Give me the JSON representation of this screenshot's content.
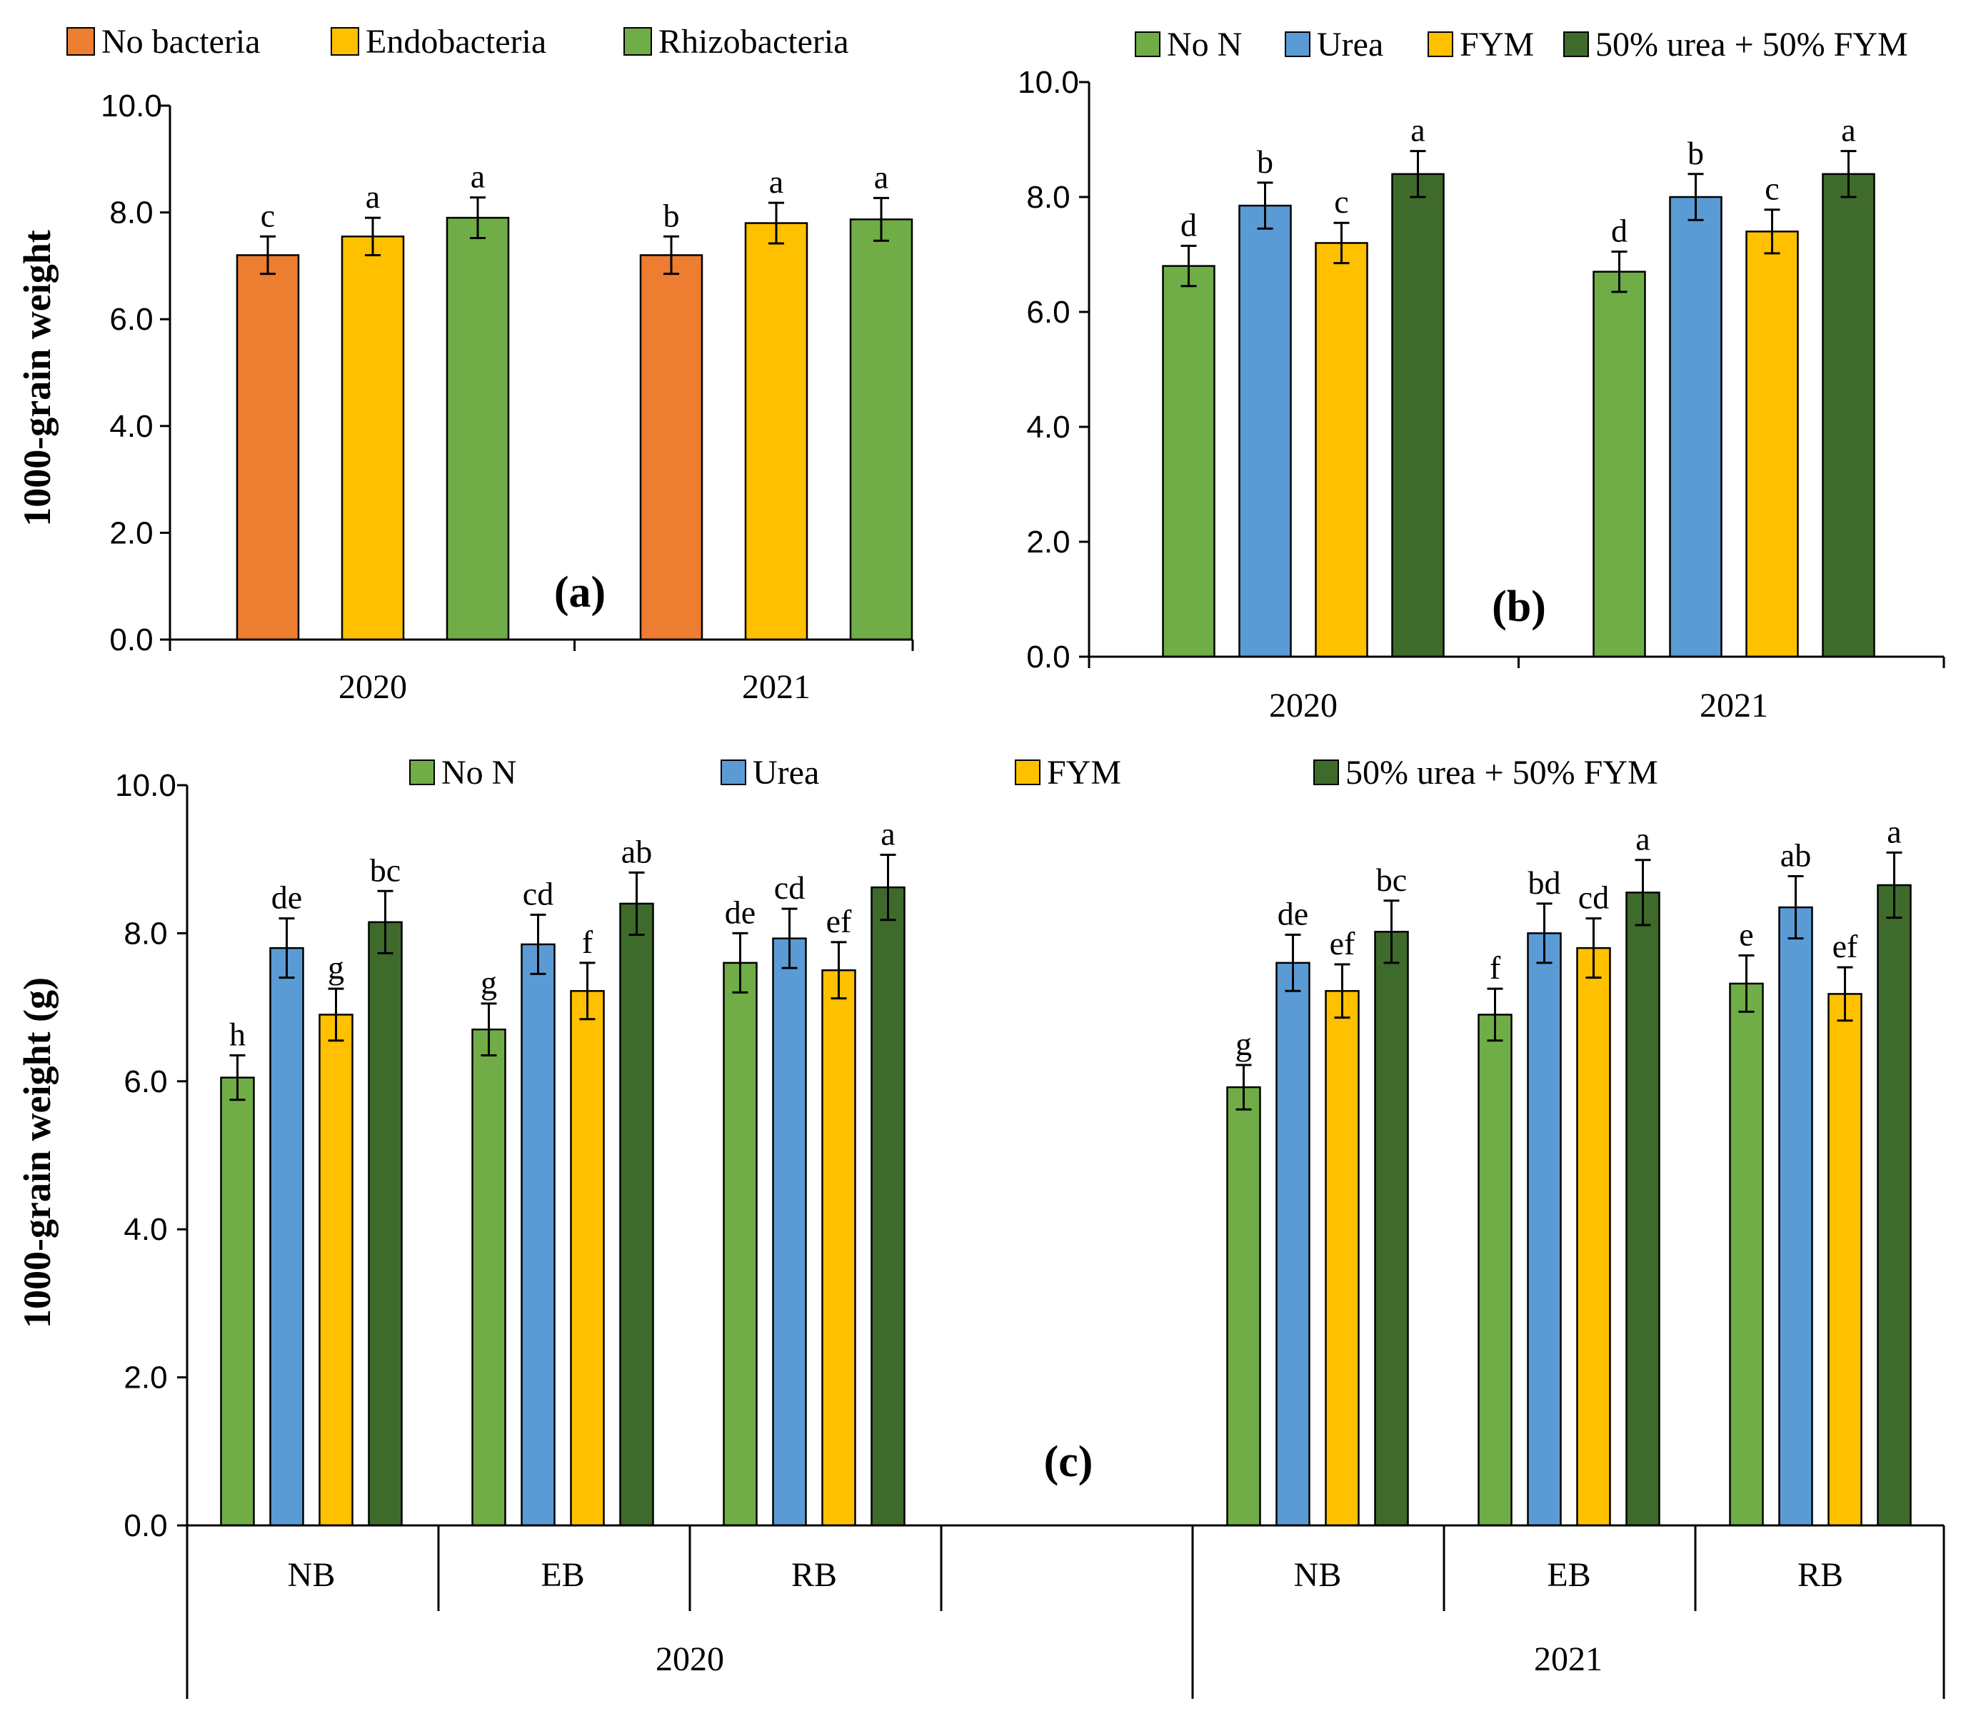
{
  "colors": {
    "no_bacteria": "#ED7D31",
    "endobacteria": "#FFC000",
    "rhizobacteria": "#70AD47",
    "no_n": "#70AD47",
    "urea": "#5B9BD5",
    "fym": "#FFC000",
    "mix": "#3E6B2C"
  },
  "chart_data": [
    {
      "id": "a",
      "type": "bar",
      "panel_label": "(a)",
      "ylabel": "1000-grain weight",
      "ylim": [
        0,
        10
      ],
      "yticks": [
        "0.0",
        "2.0",
        "4.0",
        "6.0",
        "8.0",
        "10.0"
      ],
      "categories": [
        "2020",
        "2021"
      ],
      "series": [
        {
          "name": "No bacteria",
          "color_key": "no_bacteria",
          "values": [
            7.2,
            7.2
          ],
          "errors": [
            0.35,
            0.35
          ],
          "letters": [
            "c",
            "b"
          ]
        },
        {
          "name": "Endobacteria",
          "color_key": "endobacteria",
          "values": [
            7.55,
            7.8
          ],
          "errors": [
            0.35,
            0.38
          ],
          "letters": [
            "a",
            "a"
          ]
        },
        {
          "name": "Rhizobacteria",
          "color_key": "rhizobacteria",
          "values": [
            7.9,
            7.87
          ],
          "errors": [
            0.38,
            0.4
          ],
          "letters": [
            "a",
            "a"
          ]
        }
      ]
    },
    {
      "id": "b",
      "type": "bar",
      "panel_label": "(b)",
      "ylabel": "",
      "ylim": [
        0,
        10
      ],
      "yticks": [
        "0.0",
        "2.0",
        "4.0",
        "6.0",
        "8.0",
        "10.0"
      ],
      "categories": [
        "2020",
        "2021"
      ],
      "series": [
        {
          "name": "No N",
          "color_key": "no_n",
          "values": [
            6.8,
            6.7
          ],
          "errors": [
            0.35,
            0.35
          ],
          "letters": [
            "d",
            "d"
          ]
        },
        {
          "name": "Urea",
          "color_key": "urea",
          "values": [
            7.85,
            8.0
          ],
          "errors": [
            0.4,
            0.4
          ],
          "letters": [
            "b",
            "b"
          ]
        },
        {
          "name": "FYM",
          "color_key": "fym",
          "values": [
            7.2,
            7.4
          ],
          "errors": [
            0.35,
            0.38
          ],
          "letters": [
            "c",
            "c"
          ]
        },
        {
          "name": "50% urea + 50% FYM",
          "color_key": "mix",
          "values": [
            8.4,
            8.4
          ],
          "errors": [
            0.4,
            0.4
          ],
          "letters": [
            "a",
            "a"
          ]
        }
      ]
    },
    {
      "id": "c",
      "type": "bar",
      "panel_label": "(c)",
      "ylabel": "1000-grain weight (g)",
      "ylim": [
        0,
        10
      ],
      "yticks": [
        "0.0",
        "2.0",
        "4.0",
        "6.0",
        "8.0",
        "10.0"
      ],
      "groups": [
        {
          "year": "2020",
          "subgroups": [
            "NB",
            "EB",
            "RB"
          ]
        },
        {
          "year": "2021",
          "subgroups": [
            "NB",
            "EB",
            "RB"
          ]
        }
      ],
      "series": [
        {
          "name": "No N",
          "color_key": "no_n",
          "values": [
            6.05,
            6.7,
            7.6,
            5.92,
            6.9,
            7.32
          ],
          "errors": [
            0.3,
            0.35,
            0.4,
            0.3,
            0.35,
            0.38
          ],
          "letters": [
            "h",
            "g",
            "de",
            "g",
            "f",
            "e"
          ]
        },
        {
          "name": "Urea",
          "color_key": "urea",
          "values": [
            7.8,
            7.85,
            7.93,
            7.6,
            8.0,
            8.35
          ],
          "errors": [
            0.4,
            0.4,
            0.4,
            0.38,
            0.4,
            0.42
          ],
          "letters": [
            "de",
            "cd",
            "cd",
            "de",
            "bd",
            "ab"
          ]
        },
        {
          "name": "FYM",
          "color_key": "fym",
          "values": [
            6.9,
            7.22,
            7.5,
            7.22,
            7.8,
            7.18
          ],
          "errors": [
            0.35,
            0.38,
            0.38,
            0.36,
            0.4,
            0.36
          ],
          "letters": [
            "g",
            "f",
            "ef",
            "ef",
            "cd",
            "ef"
          ]
        },
        {
          "name": "50% urea + 50% FYM",
          "color_key": "mix",
          "values": [
            8.15,
            8.4,
            8.62,
            8.02,
            8.55,
            8.65
          ],
          "errors": [
            0.42,
            0.42,
            0.44,
            0.42,
            0.44,
            0.44
          ],
          "letters": [
            "bc",
            "ab",
            "a",
            "bc",
            "a",
            "a"
          ]
        }
      ]
    }
  ]
}
